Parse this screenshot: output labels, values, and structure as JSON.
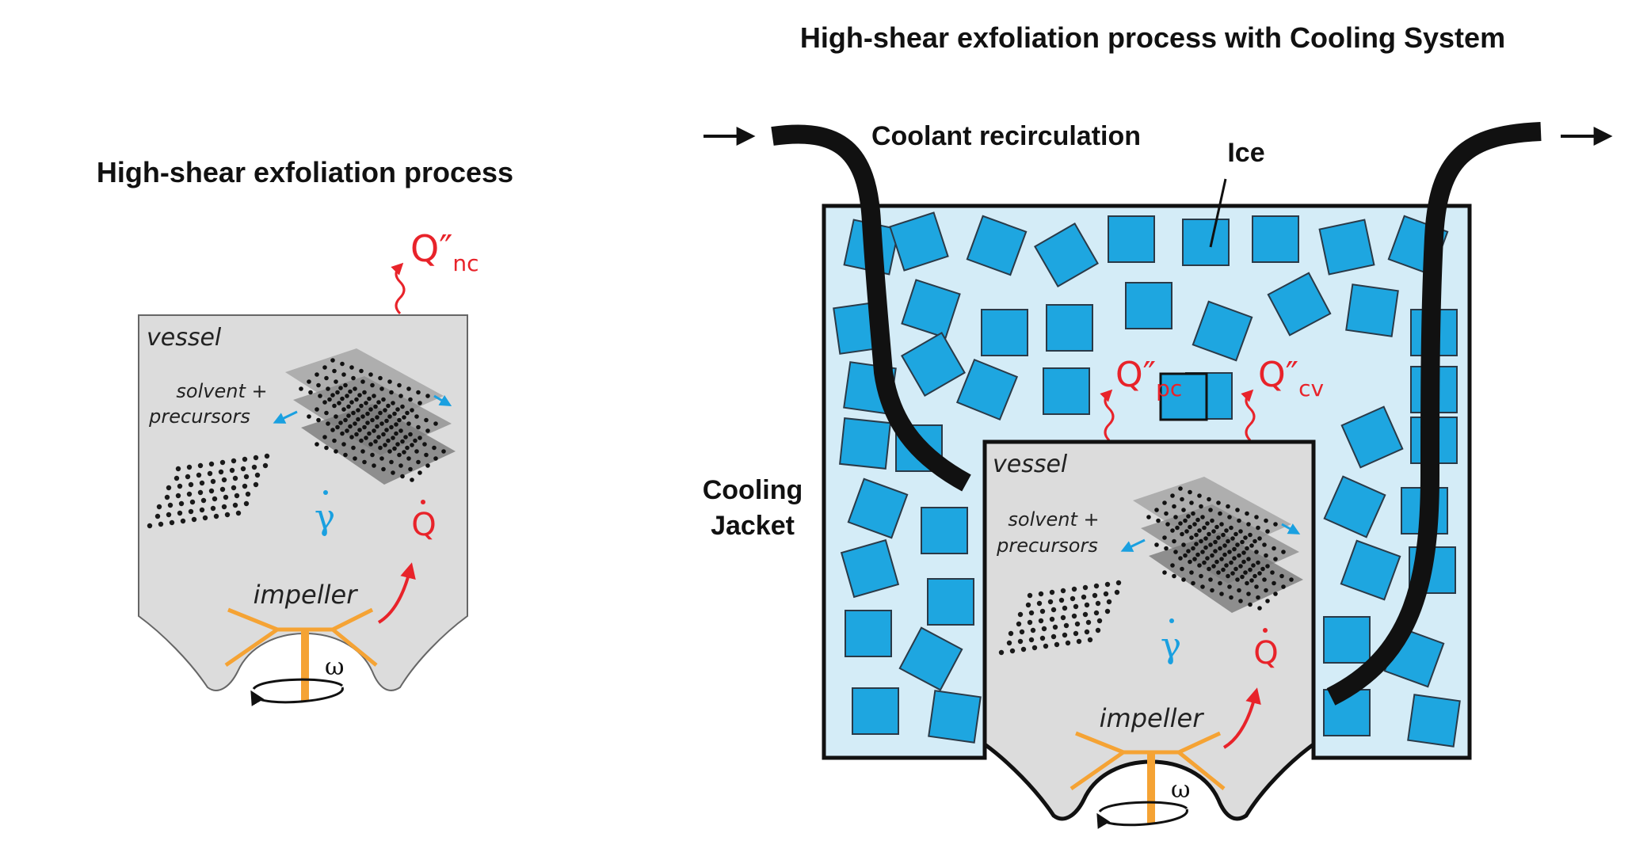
{
  "left_panel": {
    "title": "High-shear exfoliation process",
    "vessel_label": "vessel",
    "solvent_line1": "solvent +",
    "solvent_line2": "precursors",
    "impeller_label": "impeller",
    "heat_flux_main": "Q″",
    "heat_flux_sub": "nc",
    "heat_gen": "Q",
    "shear_rate": "γ",
    "omega": "ω"
  },
  "right_panel": {
    "title": "High-shear exfoliation process with Cooling System",
    "coolant_label": "Coolant recirculation",
    "ice_label": "Ice",
    "jacket_line1": "Cooling",
    "jacket_line2": "Jacket",
    "vessel_label": "vessel",
    "solvent_line1": "solvent +",
    "solvent_line2": "precursors",
    "impeller_label": "impeller",
    "flux_pc_main": "Q″",
    "flux_pc_sub": "pc",
    "flux_cv_main": "Q″",
    "flux_cv_sub": "cv",
    "heat_gen": "Q",
    "shear_rate": "γ",
    "omega": "ω"
  },
  "colors": {
    "vessel_fill": "#dcdcdc",
    "jacket_fill": "#d4ecf7",
    "ice_fill": "#1ea6e0",
    "impeller": "#f5a334",
    "heat": "#e8232a",
    "shear": "#1aa0e0"
  }
}
